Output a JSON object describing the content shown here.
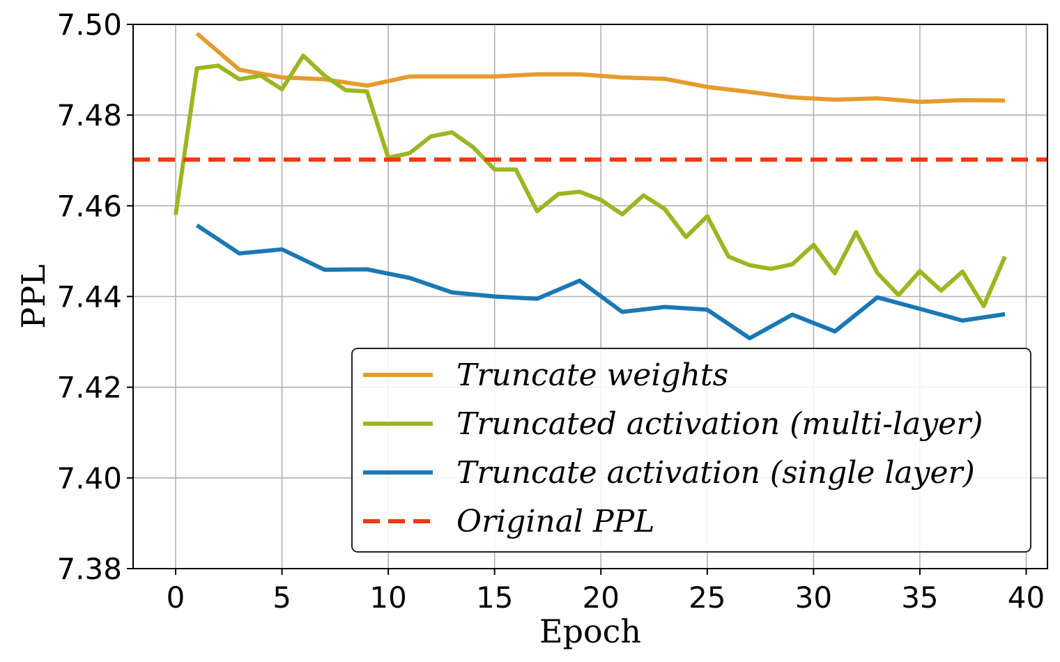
{
  "chart_data": {
    "type": "line",
    "xlabel": "Epoch",
    "ylabel": "PPL",
    "xlim": [
      -2,
      41
    ],
    "ylim": [
      7.38,
      7.5
    ],
    "xticks": [
      0,
      5,
      10,
      15,
      20,
      25,
      30,
      35,
      40
    ],
    "xtick_labels": [
      "0",
      "5",
      "10",
      "15",
      "20",
      "25",
      "30",
      "35",
      "40"
    ],
    "yticks": [
      7.38,
      7.4,
      7.42,
      7.44,
      7.46,
      7.48,
      7.5
    ],
    "ytick_labels": [
      "7.38",
      "7.40",
      "7.42",
      "7.44",
      "7.46",
      "7.48",
      "7.50"
    ],
    "grid": true,
    "legend_position": "lower-right",
    "series": [
      {
        "name": "Truncate weights",
        "color": "#E69B2D",
        "dash": "solid",
        "x": [
          1,
          3,
          5,
          7,
          9,
          11,
          13,
          15,
          17,
          19,
          21,
          23,
          25,
          27,
          29,
          31,
          33,
          35,
          37,
          39
        ],
        "y": [
          7.498,
          7.49,
          7.4883,
          7.4879,
          7.4865,
          7.4885,
          7.4885,
          7.4885,
          7.489,
          7.489,
          7.4883,
          7.488,
          7.4862,
          7.4851,
          7.4839,
          7.4834,
          7.4837,
          7.4829,
          7.4833,
          7.4832
        ]
      },
      {
        "name": "Truncated activation (multi-layer)",
        "color": "#9AB720",
        "dash": "solid",
        "x": [
          0,
          1,
          2,
          3,
          4,
          5,
          6,
          7,
          8,
          9,
          10,
          11,
          12,
          13,
          14,
          15,
          16,
          17,
          18,
          19,
          20,
          21,
          22,
          23,
          24,
          25,
          26,
          27,
          28,
          29,
          30,
          31,
          32,
          33,
          34,
          35,
          36,
          37,
          38,
          39
        ],
        "y": [
          7.458,
          7.4903,
          7.4909,
          7.4879,
          7.4887,
          7.4857,
          7.4931,
          7.4887,
          7.4855,
          7.4852,
          7.4706,
          7.4716,
          7.4753,
          7.4762,
          7.4729,
          7.468,
          7.468,
          7.4588,
          7.4626,
          7.4631,
          7.4613,
          7.4581,
          7.4623,
          7.4593,
          7.4531,
          7.4577,
          7.4488,
          7.4469,
          7.4461,
          7.4471,
          7.4514,
          7.4451,
          7.4542,
          7.4452,
          7.4403,
          7.4456,
          7.4413,
          7.4455,
          7.4379,
          7.4488
        ]
      },
      {
        "name": "Truncate activation (single layer)",
        "color": "#1B78B4",
        "dash": "solid",
        "x": [
          1,
          3,
          5,
          7,
          9,
          11,
          13,
          15,
          17,
          19,
          21,
          23,
          25,
          27,
          29,
          31,
          33,
          35,
          37,
          39
        ],
        "y": [
          7.4557,
          7.4495,
          7.4504,
          7.4459,
          7.446,
          7.4441,
          7.4409,
          7.44,
          7.4395,
          7.4435,
          7.4366,
          7.4377,
          7.4371,
          7.4308,
          7.436,
          7.4323,
          7.4398,
          7.4373,
          7.4347,
          7.4361
        ]
      },
      {
        "name": "Original PPL",
        "color": "#EE3A12",
        "dash": "dashed",
        "hline": 7.4702
      }
    ]
  }
}
